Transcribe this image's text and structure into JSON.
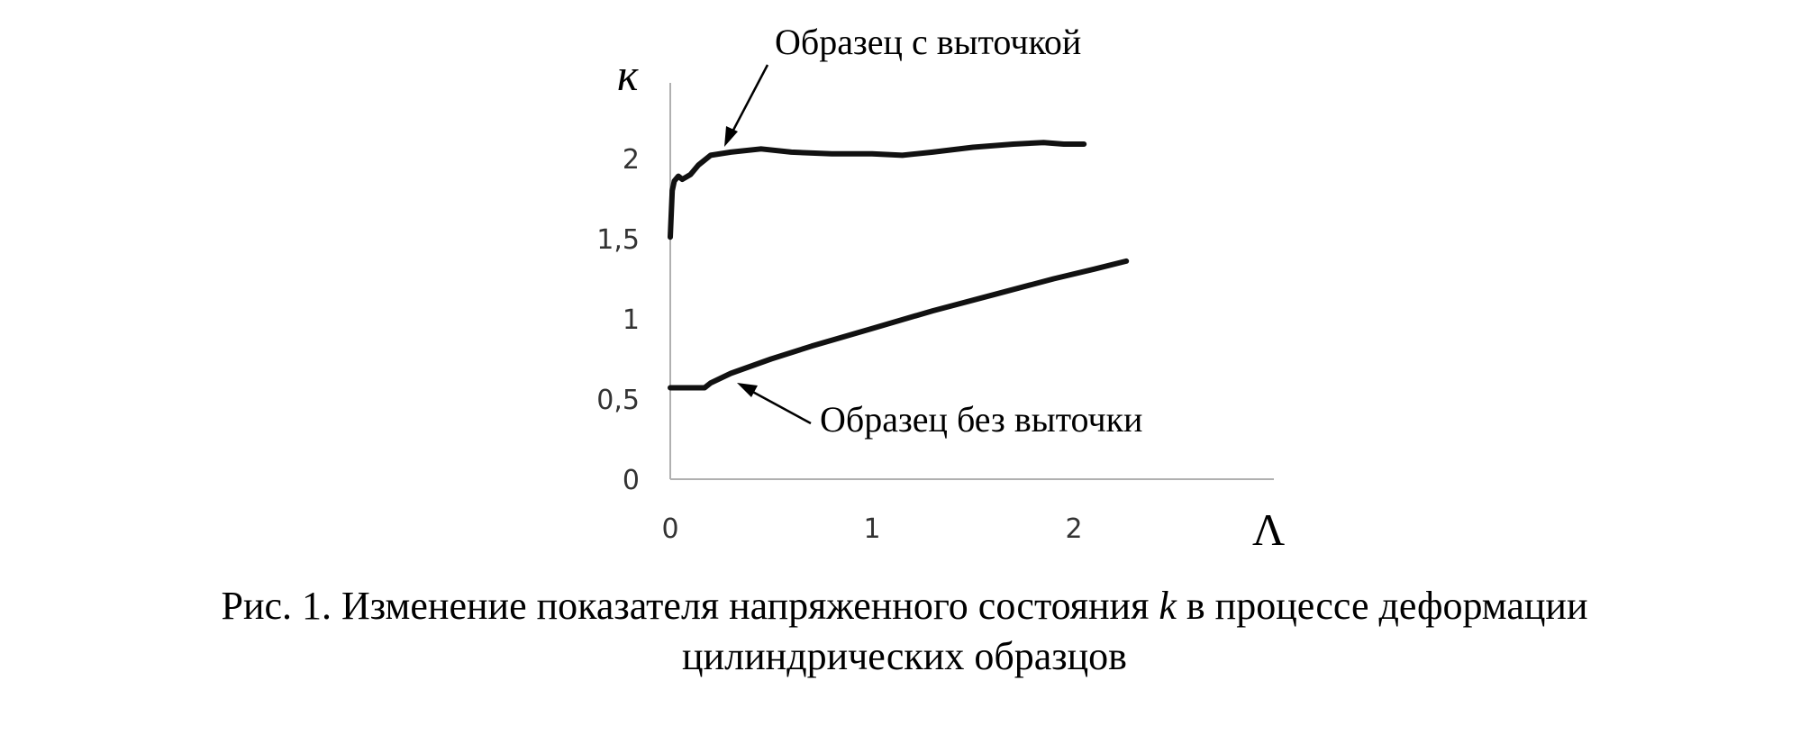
{
  "chart_data": {
    "type": "line",
    "xlabel": "Λ",
    "ylabel": "к",
    "xlim": [
      0,
      3
    ],
    "ylim": [
      0,
      2.5
    ],
    "x_ticks": [
      "0",
      "1",
      "2"
    ],
    "y_ticks": [
      "0",
      "0,5",
      "1",
      "1,5",
      "2"
    ],
    "grid": false,
    "series": [
      {
        "name": "Образец с выточкой",
        "x": [
          0.0,
          0.01,
          0.02,
          0.04,
          0.06,
          0.1,
          0.14,
          0.2,
          0.3,
          0.45,
          0.6,
          0.8,
          1.0,
          1.15,
          1.3,
          1.5,
          1.7,
          1.85,
          1.95,
          2.05
        ],
        "y": [
          1.51,
          1.8,
          1.86,
          1.89,
          1.87,
          1.9,
          1.96,
          2.02,
          2.04,
          2.06,
          2.04,
          2.03,
          2.03,
          2.02,
          2.04,
          2.07,
          2.09,
          2.1,
          2.09,
          2.09
        ]
      },
      {
        "name": "Образец без выточки",
        "x": [
          0.0,
          0.17,
          0.2,
          0.3,
          0.5,
          0.7,
          1.0,
          1.3,
          1.6,
          1.9,
          2.1,
          2.26
        ],
        "y": [
          0.57,
          0.57,
          0.6,
          0.66,
          0.75,
          0.83,
          0.94,
          1.05,
          1.15,
          1.25,
          1.31,
          1.36
        ]
      }
    ],
    "annotations": [
      {
        "text": "Образец с выточкой",
        "target_series": 0
      },
      {
        "text": "Образец без выточки",
        "target_series": 1
      }
    ]
  },
  "caption": {
    "line1_before": "Рис. 1. Изменение показателя напряженного состояния ",
    "line1_symbol": "k",
    "line1_after": " в процессе деформации",
    "line2": "цилиндрических образцов"
  }
}
